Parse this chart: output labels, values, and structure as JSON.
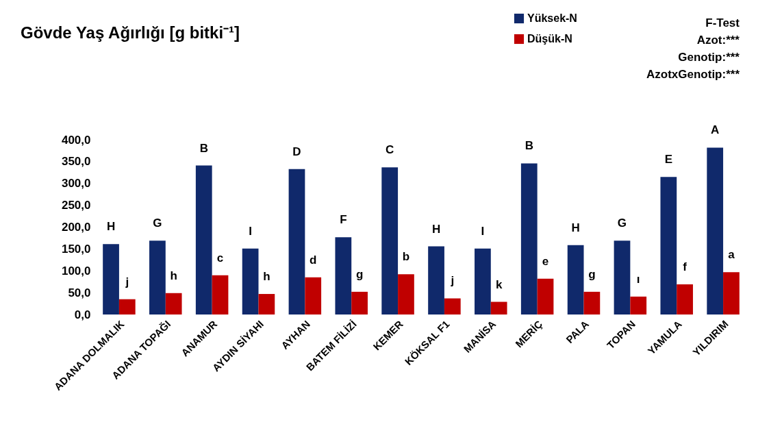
{
  "chart_data": {
    "type": "bar",
    "title": "Gövde Yaş Ağırlığı [g bitki⁻¹]",
    "categories": [
      "ADANA DOLMALIK",
      "ADANA TOPAĞI",
      "ANAMUR",
      "AYDIN SİYAHI",
      "AYHAN",
      "BATEM FİLİZİ",
      "KEMER",
      "KÖKSAL F1",
      "MANİSA",
      "MERİÇ",
      "PALA",
      "TOPAN",
      "YAMULA",
      "YILDIRIM"
    ],
    "series": [
      {
        "name": "Yüksek-N",
        "color": "#10296b",
        "values": [
          161,
          169,
          341,
          151,
          333,
          177,
          337,
          156,
          151,
          346,
          159,
          169,
          315,
          382
        ],
        "value_labels": [
          "H",
          "G",
          "B",
          "I",
          "D",
          "F",
          "C",
          "H",
          "I",
          "B",
          "H",
          "G",
          "E",
          "A"
        ]
      },
      {
        "name": "Düşük-N",
        "color": "#c00000",
        "values": [
          35,
          49,
          90,
          47,
          85,
          52,
          92,
          37,
          29,
          82,
          52,
          41,
          69,
          97
        ],
        "value_labels": [
          "j",
          "h",
          "c",
          "h",
          "d",
          "g",
          "b",
          "j",
          "k",
          "e",
          "g",
          "ı",
          "f",
          "a"
        ]
      }
    ],
    "ylim": [
      0,
      400
    ],
    "yticks": [
      {
        "value": 0,
        "label": "0,0"
      },
      {
        "value": 50,
        "label": "50,0"
      },
      {
        "value": 100,
        "label": "100,0"
      },
      {
        "value": 150,
        "label": "150,0"
      },
      {
        "value": 200,
        "label": "200,0"
      },
      {
        "value": 250,
        "label": "250,0"
      },
      {
        "value": 300,
        "label": "300,0"
      },
      {
        "value": 350,
        "label": "350,0"
      },
      {
        "value": 400,
        "label": "400,0"
      }
    ],
    "grid": false,
    "legend": "top right",
    "annotations": [
      "F-Test",
      "Azot:***",
      "Genotip:***",
      "AzotxGenotip:***"
    ]
  }
}
